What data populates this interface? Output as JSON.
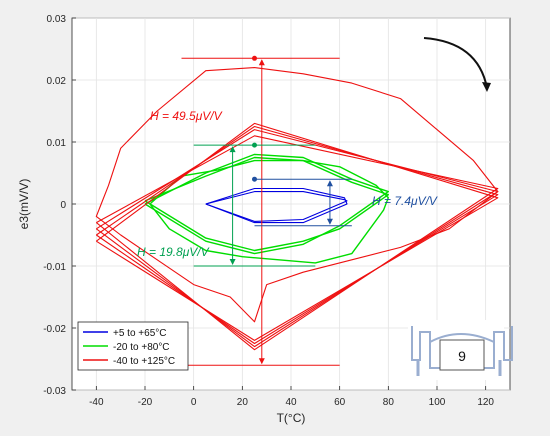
{
  "chart_data": {
    "type": "line",
    "xlabel": "T(°C)",
    "ylabel": "e3(mV/V)",
    "xlim": [
      -50,
      130
    ],
    "ylim": [
      -0.03,
      0.03
    ],
    "x_ticks": [
      -40,
      -20,
      0,
      20,
      40,
      60,
      80,
      100,
      120
    ],
    "y_ticks": [
      -0.03,
      -0.02,
      -0.01,
      0,
      0.01,
      0.02,
      0.03
    ],
    "x_tick_labels": [
      "-40",
      "-20",
      "0",
      "20",
      "40",
      "60",
      "80",
      "100",
      "120"
    ],
    "y_tick_labels": [
      "-0.03",
      "-0.02",
      "-0.01",
      "0",
      "0.01",
      "0.02",
      "0.03"
    ],
    "grid": true,
    "legend_position": "bottom-left",
    "series": [
      {
        "name": "+5 to +65°C",
        "color": "#0000e0",
        "loops": [
          [
            [
              5,
              0
            ],
            [
              25,
              0.0025
            ],
            [
              45,
              0.0025
            ],
            [
              62,
              0.001
            ],
            [
              63,
              0
            ],
            [
              45,
              -0.003
            ],
            [
              25,
              -0.003
            ],
            [
              5,
              0
            ]
          ],
          [
            [
              5,
              0
            ],
            [
              25,
              0.002
            ],
            [
              45,
              0.002
            ],
            [
              62,
              0.0007
            ],
            [
              63,
              0.0005
            ],
            [
              45,
              -0.0025
            ],
            [
              25,
              -0.0028
            ],
            [
              5,
              0
            ]
          ]
        ]
      },
      {
        "name": "-20 to +80°C",
        "color": "#00dd00",
        "loops": [
          [
            [
              -20,
              0
            ],
            [
              5,
              0.005
            ],
            [
              25,
              0.008
            ],
            [
              45,
              0.0075
            ],
            [
              65,
              0.004
            ],
            [
              80,
              0.002
            ],
            [
              60,
              -0.0035
            ],
            [
              45,
              -0.0065
            ],
            [
              25,
              -0.008
            ],
            [
              5,
              -0.006
            ],
            [
              -20,
              0
            ]
          ],
          [
            [
              -20,
              0.0005
            ],
            [
              5,
              0.0045
            ],
            [
              25,
              0.0075
            ],
            [
              45,
              0.007
            ],
            [
              65,
              0.0035
            ],
            [
              80,
              0.0015
            ],
            [
              60,
              -0.004
            ],
            [
              45,
              -0.006
            ],
            [
              25,
              -0.0075
            ],
            [
              5,
              -0.0055
            ],
            [
              -20,
              0.0005
            ]
          ],
          [
            [
              -18,
              0
            ],
            [
              -5,
              0.0045
            ],
            [
              10,
              0.0055
            ],
            [
              25,
              0.007
            ],
            [
              45,
              0.007
            ],
            [
              60,
              0.006
            ],
            [
              75,
              0.003
            ],
            [
              80,
              0.001
            ],
            [
              78,
              -0.001
            ],
            [
              65,
              -0.008
            ],
            [
              50,
              -0.0095
            ],
            [
              35,
              -0.009
            ],
            [
              20,
              -0.0085
            ],
            [
              5,
              -0.0075
            ],
            [
              -10,
              -0.004
            ],
            [
              -18,
              0
            ]
          ]
        ]
      },
      {
        "name": "-40 to +125°C",
        "color": "#ee1111",
        "loops": [
          [
            [
              -40,
              -0.004
            ],
            [
              25,
              0.012
            ],
            [
              125,
              0.002
            ],
            [
              25,
              -0.023
            ],
            [
              -40,
              -0.004
            ]
          ],
          [
            [
              -40,
              -0.005
            ],
            [
              25,
              0.0125
            ],
            [
              125,
              0.0015
            ],
            [
              25,
              -0.0225
            ],
            [
              -40,
              -0.005
            ]
          ],
          [
            [
              -40,
              -0.006
            ],
            [
              25,
              0.013
            ],
            [
              125,
              0.001
            ],
            [
              25,
              -0.022
            ],
            [
              -40,
              -0.006
            ]
          ],
          [
            [
              -40,
              -0.003
            ],
            [
              25,
              0.011
            ],
            [
              125,
              0.0025
            ],
            [
              25,
              -0.0235
            ],
            [
              -40,
              -0.003
            ]
          ],
          [
            [
              -35,
              0.003
            ],
            [
              -30,
              0.009
            ],
            [
              -15,
              0.015
            ],
            [
              5,
              0.0215
            ],
            [
              25,
              0.022
            ],
            [
              45,
              0.021
            ],
            [
              65,
              0.0195
            ],
            [
              85,
              0.017
            ],
            [
              100,
              0.012
            ],
            [
              115,
              0.007
            ],
            [
              125,
              0.002
            ],
            [
              105,
              -0.004
            ],
            [
              85,
              -0.007
            ],
            [
              65,
              -0.009
            ],
            [
              45,
              -0.011
            ],
            [
              30,
              -0.013
            ],
            [
              25,
              -0.019
            ],
            [
              15,
              -0.015
            ],
            [
              0,
              -0.013
            ],
            [
              -15,
              -0.009
            ],
            [
              -30,
              -0.005
            ],
            [
              -40,
              -0.002
            ],
            [
              -38,
              0.0
            ],
            [
              -35,
              0.003
            ]
          ]
        ]
      }
    ],
    "annotations": [
      {
        "text": "H = 49.5μV/V",
        "color": "#ee1111",
        "x": 25,
        "y_top": 0.0235,
        "y_bottom": -0.026,
        "bar_x": [
          -5,
          60
        ]
      },
      {
        "text": "H = 19.8μV/V",
        "color": "#00a050",
        "x": 25,
        "y_top": 0.0095,
        "y_bottom": -0.01,
        "bar_x": [
          0,
          50
        ]
      },
      {
        "text": "H = 7.4μV/V",
        "color": "#2050a0",
        "x": 25,
        "y_top": 0.004,
        "y_bottom": -0.0035,
        "bar_x": [
          25,
          65
        ]
      }
    ],
    "inset_label": "9"
  }
}
